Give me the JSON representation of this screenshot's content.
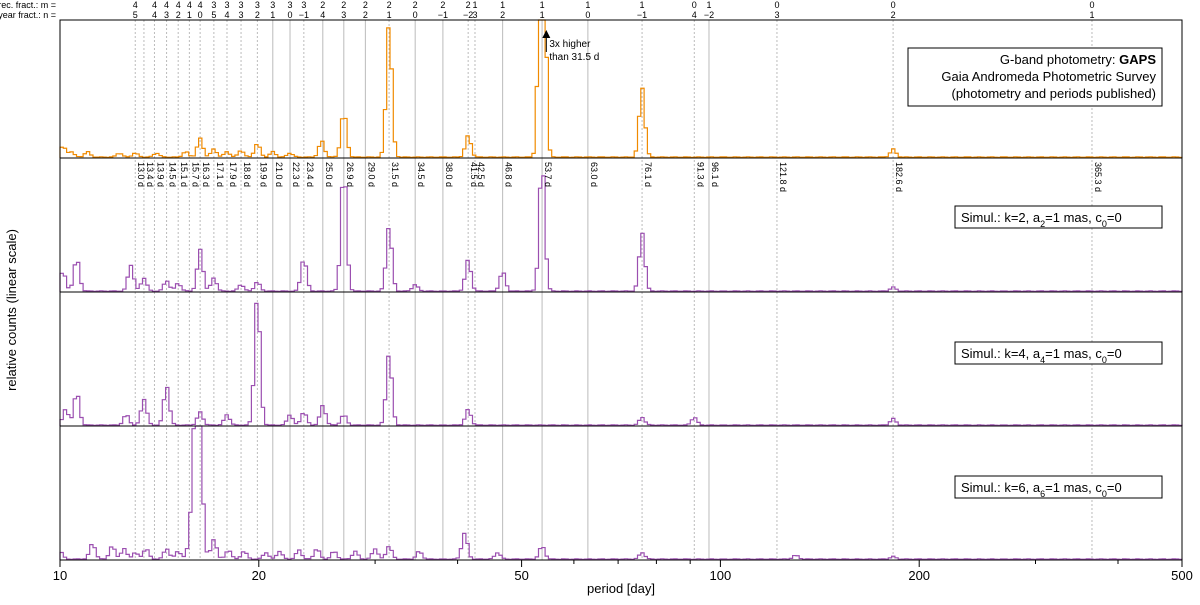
{
  "colors": {
    "orange": "#f08a00",
    "purple": "#9b4fb0",
    "axis": "#000000",
    "grid": "#bbbbbb"
  },
  "chart_data": {
    "type": "bar",
    "xlabel": "period [day]",
    "ylabel": "relative counts (linear scale)",
    "xscale": "log",
    "xlim": [
      10,
      500
    ],
    "xticks": [
      {
        "v": 10,
        "label": "10"
      },
      {
        "v": 20,
        "label": "20"
      },
      {
        "v": 50,
        "label": "50"
      },
      {
        "v": 100,
        "label": "100"
      },
      {
        "v": 200,
        "label": "200"
      },
      {
        "v": 500,
        "label": "500"
      }
    ],
    "fract_row1_title": "prec. fract.: m =",
    "fract_row2_title": "year fract.: n =",
    "fractions": [
      {
        "p": 13.0,
        "m": "4",
        "n": "5"
      },
      {
        "p": 13.9,
        "m": "4",
        "n": "4"
      },
      {
        "p": 14.5,
        "m": "4",
        "n": "3"
      },
      {
        "p": 15.1,
        "m": "4",
        "n": "2"
      },
      {
        "p": 15.7,
        "m": "4",
        "n": "1"
      },
      {
        "p": 16.3,
        "m": "4",
        "n": "0"
      },
      {
        "p": 17.1,
        "m": "3",
        "n": "5"
      },
      {
        "p": 17.9,
        "m": "3",
        "n": "4"
      },
      {
        "p": 18.8,
        "m": "3",
        "n": "3"
      },
      {
        "p": 19.9,
        "m": "3",
        "n": "2"
      },
      {
        "p": 21.0,
        "m": "3",
        "n": "1"
      },
      {
        "p": 22.3,
        "m": "3",
        "n": "0"
      },
      {
        "p": 23.4,
        "m": "3",
        "n": "−1"
      },
      {
        "p": 25.0,
        "m": "2",
        "n": "4"
      },
      {
        "p": 26.9,
        "m": "2",
        "n": "3"
      },
      {
        "p": 29.0,
        "m": "2",
        "n": "2"
      },
      {
        "p": 31.5,
        "m": "2",
        "n": "1"
      },
      {
        "p": 34.5,
        "m": "2",
        "n": "0"
      },
      {
        "p": 38.0,
        "m": "2",
        "n": "−1"
      },
      {
        "p": 41.5,
        "m": "2",
        "n": "−2"
      },
      {
        "p": 42.5,
        "m": "1",
        "n": "3"
      },
      {
        "p": 46.8,
        "m": "1",
        "n": "2"
      },
      {
        "p": 53.7,
        "m": "1",
        "n": "1"
      },
      {
        "p": 63.0,
        "m": "1",
        "n": "0"
      },
      {
        "p": 76.1,
        "m": "1",
        "n": "−1"
      },
      {
        "p": 91.3,
        "m": "0",
        "n": "4"
      },
      {
        "p": 96.1,
        "m": "1",
        "n": "−2"
      },
      {
        "p": 121.8,
        "m": "0",
        "n": "3"
      },
      {
        "p": 182.6,
        "m": "0",
        "n": "2"
      },
      {
        "p": 365.3,
        "m": "0",
        "n": "1"
      }
    ],
    "period_labels": [
      {
        "p": 13.0,
        "label": "13.0 d"
      },
      {
        "p": 13.4,
        "label": "13.4 d"
      },
      {
        "p": 13.9,
        "label": "13.9 d"
      },
      {
        "p": 14.5,
        "label": "14.5 d"
      },
      {
        "p": 15.1,
        "label": "15.1 d"
      },
      {
        "p": 15.7,
        "label": "15.7 d"
      },
      {
        "p": 16.3,
        "label": "16.3 d"
      },
      {
        "p": 17.1,
        "label": "17.1 d"
      },
      {
        "p": 17.9,
        "label": "17.9 d"
      },
      {
        "p": 18.8,
        "label": "18.8 d"
      },
      {
        "p": 19.9,
        "label": "19.9 d"
      },
      {
        "p": 21.0,
        "label": "21.0 d"
      },
      {
        "p": 22.3,
        "label": "22.3 d"
      },
      {
        "p": 23.4,
        "label": "23.4 d"
      },
      {
        "p": 25.0,
        "label": "25.0 d"
      },
      {
        "p": 26.9,
        "label": "26.9 d"
      },
      {
        "p": 29.0,
        "label": "29.0 d"
      },
      {
        "p": 31.5,
        "label": "31.5 d"
      },
      {
        "p": 34.5,
        "label": "34.5 d"
      },
      {
        "p": 38.0,
        "label": "38.0 d"
      },
      {
        "p": 41.5,
        "label": "41.5 d"
      },
      {
        "p": 42.5,
        "label": "42.5 d"
      },
      {
        "p": 46.8,
        "label": "46.8 d"
      },
      {
        "p": 53.7,
        "label": "53.7 d"
      },
      {
        "p": 63.0,
        "label": "63.0 d"
      },
      {
        "p": 76.1,
        "label": "76.1 d"
      },
      {
        "p": 91.3,
        "label": "91.3 d"
      },
      {
        "p": 96.1,
        "label": "96.1 d"
      },
      {
        "p": 121.8,
        "label": "121.8 d"
      },
      {
        "p": 182.6,
        "label": "182.6 d"
      },
      {
        "p": 365.3,
        "label": "365.3 d"
      }
    ],
    "solid_lines": [
      21.0,
      22.3,
      25.0,
      26.9,
      29.0,
      34.5,
      38.0,
      46.8,
      53.7,
      63.0,
      96.1
    ],
    "annotation": "3x higher than 31.5 d",
    "annotation_lines": [
      "3x higher",
      "than 31.5 d"
    ],
    "annotation_period": 54.5,
    "panels": [
      {
        "color": "orange",
        "legend_line1_prefix": "G-band photometry: ",
        "legend_line1_bold": "GAPS",
        "legend_line2": "Gaia Andromeda Photometric Survey",
        "legend_line3": "(photometry and periods published)",
        "peaks": [
          [
            10.1,
            0.08
          ],
          [
            10.4,
            0.04
          ],
          [
            11.0,
            0.04
          ],
          [
            12.3,
            0.03
          ],
          [
            13.0,
            0.03
          ],
          [
            14.0,
            0.03
          ],
          [
            15.5,
            0.04
          ],
          [
            16.3,
            0.14
          ],
          [
            17.1,
            0.06
          ],
          [
            17.9,
            0.04
          ],
          [
            18.8,
            0.05
          ],
          [
            19.9,
            0.1
          ],
          [
            21.0,
            0.04
          ],
          [
            22.3,
            0.03
          ],
          [
            24.9,
            0.12
          ],
          [
            26.9,
            0.34
          ],
          [
            31.5,
            1.0
          ],
          [
            41.5,
            0.16
          ],
          [
            53.7,
            3.0
          ],
          [
            76.1,
            0.52
          ],
          [
            182.6,
            0.06
          ]
        ]
      },
      {
        "color": "purple",
        "legend_prefix": "Simul.:  k=2, a",
        "legend_sub": "2",
        "legend_suffix": "=1 mas, c",
        "legend_sub2": "0",
        "legend_end": "=0",
        "peaks": [
          [
            10.1,
            0.15
          ],
          [
            10.6,
            0.25
          ],
          [
            12.8,
            0.2
          ],
          [
            13.4,
            0.1
          ],
          [
            14.5,
            0.08
          ],
          [
            15.1,
            0.06
          ],
          [
            16.3,
            0.32
          ],
          [
            17.1,
            0.1
          ],
          [
            18.8,
            0.05
          ],
          [
            19.9,
            0.07
          ],
          [
            23.4,
            0.25
          ],
          [
            26.9,
            0.95
          ],
          [
            31.5,
            0.5
          ],
          [
            34.5,
            0.05
          ],
          [
            41.5,
            0.24
          ],
          [
            46.8,
            0.15
          ],
          [
            53.7,
            1.0
          ],
          [
            76.1,
            0.45
          ],
          [
            182.6,
            0.03
          ]
        ]
      },
      {
        "color": "purple",
        "legend_prefix": "Simul.:  k=4, a",
        "legend_sub": "4",
        "legend_suffix": "=1 mas, c",
        "legend_sub2": "0",
        "legend_end": "=0",
        "peaks": [
          [
            10.2,
            0.12
          ],
          [
            10.6,
            0.25
          ],
          [
            12.6,
            0.08
          ],
          [
            13.4,
            0.2
          ],
          [
            14.5,
            0.3
          ],
          [
            16.3,
            0.1
          ],
          [
            17.9,
            0.08
          ],
          [
            19.9,
            1.0
          ],
          [
            22.3,
            0.08
          ],
          [
            23.4,
            0.1
          ],
          [
            25.0,
            0.15
          ],
          [
            26.9,
            0.08
          ],
          [
            31.5,
            0.55
          ],
          [
            41.5,
            0.12
          ],
          [
            76.1,
            0.06
          ],
          [
            91.3,
            0.06
          ],
          [
            182.6,
            0.05
          ]
        ]
      },
      {
        "color": "purple",
        "legend_prefix": "Simul.:  k=6, a",
        "legend_sub": "6",
        "legend_suffix": "=1 mas, c",
        "legend_sub2": "0",
        "legend_end": "=0",
        "peaks": [
          [
            10.0,
            0.06
          ],
          [
            11.2,
            0.12
          ],
          [
            12.0,
            0.1
          ],
          [
            12.5,
            0.08
          ],
          [
            13.0,
            0.05
          ],
          [
            13.5,
            0.08
          ],
          [
            14.5,
            0.08
          ],
          [
            15.1,
            0.06
          ],
          [
            15.7,
            0.08
          ],
          [
            16.0,
            1.0
          ],
          [
            16.3,
            0.88
          ],
          [
            17.1,
            0.15
          ],
          [
            18.0,
            0.07
          ],
          [
            19.0,
            0.06
          ],
          [
            20.5,
            0.05
          ],
          [
            21.5,
            0.06
          ],
          [
            23.0,
            0.07
          ],
          [
            24.5,
            0.08
          ],
          [
            26.0,
            0.06
          ],
          [
            28.0,
            0.06
          ],
          [
            30.0,
            0.08
          ],
          [
            31.5,
            0.1
          ],
          [
            35.0,
            0.06
          ],
          [
            41.0,
            0.2
          ],
          [
            46.0,
            0.05
          ],
          [
            53.7,
            0.1
          ],
          [
            76.1,
            0.05
          ],
          [
            130.0,
            0.03
          ],
          [
            182.6,
            0.02
          ]
        ]
      }
    ]
  }
}
